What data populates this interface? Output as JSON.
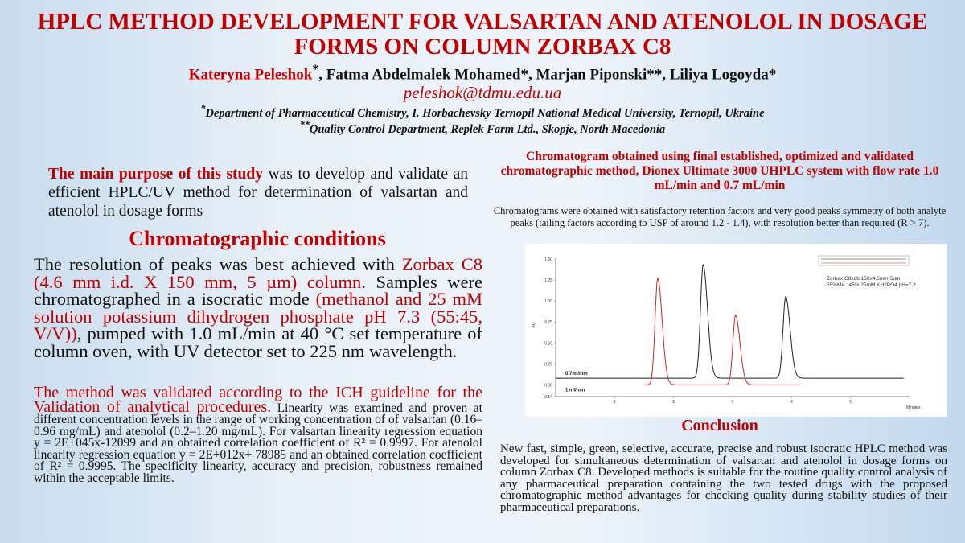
{
  "title": "HPLC METHOD DEVELOPMENT FOR VALSARTAN AND ATENOLOL IN DOSAGE FORMS ON COLUMN ZORBAX C8",
  "authors": {
    "main": "Kateryna Peleshok",
    "main_mark": "*",
    "rest": ", Fatma Abdelmalek Mohamed*, Marjan Piponski**,  Liliya Logoyda*"
  },
  "email": "peleshok@tdmu.edu.ua",
  "affiliations": [
    {
      "mark": "*",
      "text": "Department of Pharmaceutical Chemistry, I. Horbachevsky Ternopil National Medical University, Ternopil, Ukraine"
    },
    {
      "mark": "**",
      "text": "Quality Control Department, Replek Farm Ltd., Skopje, North Macedonia"
    }
  ],
  "purpose": {
    "lead": "The main purpose of this study",
    "text": " was to develop and validate an efficient HPLC/UV method for determination of valsartan and atenolol in dosage forms"
  },
  "conditions": {
    "heading": "Chromatographic conditions",
    "t1": "The resolution of peaks was best achieved with ",
    "r1": "Zorbax C8 (4.6 mm i.d. X 150 mm, 5 µm)  column",
    "t2": ". Samples were chromatographed in a isocratic mode ",
    "r2": "(methanol and 25 mM solution potassium dihydrogen phosphate pH 7.3 (55:45, V/V))",
    "t3": ", pumped with 1.0 mL/min at 40 °C set temperature of column oven, with UV detector set to 225 nm wavelength."
  },
  "validation": {
    "lead": "The method was validated according to the ICH guideline for the Validation of analytical procedures.",
    "text": " Linearity was examined and proven at  different concentration levels in the range of working concentration of of valsartan (0.16–0.96 mg/mL) and atenolol (0.2–1.20 mg/mL). For valsartan linearity regression equation y = 2E+045x-12099 and an obtained correlation coefficient of R² = 0.9997. For atenolol linearity regression equation y = 2E+012x+ 78985 and an obtained correlation coefficient of R² = 0.9995. The specificity linearity, accuracy and precision, robustness remained within the acceptable limits."
  },
  "chromatogram": {
    "heading": "Chromatogram obtained using final established, optimized and validated chromatographic method,  Dionex Ultimate 3000 UHPLC system with flow rate 1.0 mL/min and 0.7 mL/min",
    "text": "Chromatograms were obtained with satisfactory retention factors and very good peaks symmetry of both analyte peaks (tailing factors according to USP of around 1.2 - 1.4), with resolution better than required (R > 7).",
    "chart_data": {
      "type": "line",
      "xlabel": "Minutes",
      "ylabel": "AU",
      "xlim": [
        0,
        6
      ],
      "ylim": [
        -0.14,
        1.5
      ],
      "x_ticks": [
        "1",
        "2",
        "3",
        "4",
        "5"
      ],
      "y_ticks": [
        "1.50",
        "1.25",
        "1.00",
        "0.75",
        "0.50",
        "0.25",
        "0.00",
        "-0.14"
      ],
      "annotation": [
        "Zorbax C8xdb 150x4.6mm-5um",
        "55%Me : 45% 25mM KH2PO4 pH=7.3"
      ],
      "series": [
        {
          "name": "0.7ml/min",
          "color": "#222222",
          "baseline": 0.08,
          "x_range": [
            0,
            5.9
          ],
          "peaks": [
            {
              "x": 2.5,
              "y": 1.43
            },
            {
              "x": 3.9,
              "y": 1.05
            }
          ]
        },
        {
          "name": "1 ml/min",
          "color": "#c62828",
          "baseline": 0.0,
          "x_range": [
            1.5,
            4.15
          ],
          "peaks": [
            {
              "x": 1.73,
              "y": 1.27
            },
            {
              "x": 3.05,
              "y": 0.83
            }
          ]
        }
      ]
    }
  },
  "conclusion": {
    "heading": "Conclusion",
    "text": "New fast, simple, green, selective, accurate, precise and robust isocratic HPLC method was developed for simultaneous determination of valsartan and atenolol in dosage forms on column Zorbax C8. Developed methods is suitable for the routine quality control analysis of any pharmaceutical preparation containing the two tested drugs with the proposed chromatographic method advantages for checking quality during stability studies of their pharmaceutical preparations."
  }
}
